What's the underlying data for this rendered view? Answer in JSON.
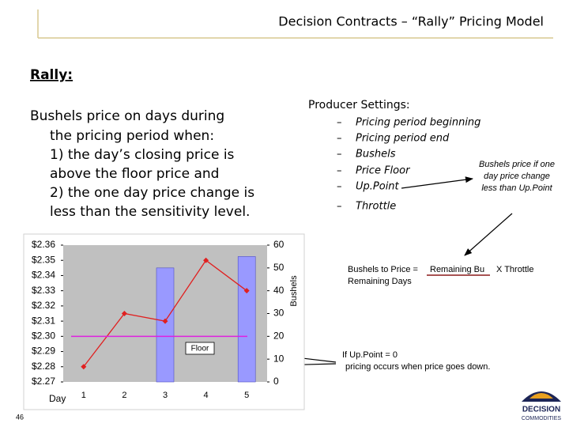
{
  "header": {
    "title": "Decision Contracts – “Rally” Pricing Model"
  },
  "section_title": "Rally:",
  "description": [
    "Bushels price on days  during",
    "the pricing period when:",
    "1) the day’s closing price is",
    "above the floor price and",
    "2) the one day price change is",
    "less than the sensitivity level."
  ],
  "producer_settings": {
    "title": "Producer Settings:",
    "bullet": "–",
    "items": [
      "Pricing period beginning",
      "Pricing period end",
      "Bushels",
      "Price Floor",
      "Up.Point",
      "Throttle"
    ]
  },
  "notes": {
    "uppoint_rule": [
      "Bushels price if one",
      "day price change",
      "less than Up.Point"
    ],
    "throttle_formula": {
      "lhs": "Bushels to Price =",
      "numerator": "Remaining Bu",
      "operator": "X Throttle",
      "denominator": "Remaining Days"
    },
    "zero_uppoint": [
      "If Up.Point = 0",
      "pricing occurs when price goes down."
    ]
  },
  "page_number": "46",
  "logo": [
    "DECISION",
    "COMMODITIES"
  ],
  "chart_data": {
    "type": "combo",
    "x_label": "Day",
    "y2_label": "Bushels",
    "categories": [
      "1",
      "2",
      "3",
      "4",
      "5"
    ],
    "background": "#c0c0c0",
    "ylim": [
      2.27,
      2.36
    ],
    "yticks": [
      {
        "value": 2.27,
        "label": "$2.27"
      },
      {
        "value": 2.28,
        "label": "$2.28"
      },
      {
        "value": 2.29,
        "label": "$2.29"
      },
      {
        "value": 2.3,
        "label": "$2.30"
      },
      {
        "value": 2.31,
        "label": "$2.31"
      },
      {
        "value": 2.32,
        "label": "$2.32"
      },
      {
        "value": 2.33,
        "label": "$2.33"
      },
      {
        "value": 2.34,
        "label": "$2.34"
      },
      {
        "value": 2.35,
        "label": "$2.35"
      },
      {
        "value": 2.36,
        "label": "$2.36"
      }
    ],
    "y2lim": [
      0,
      60
    ],
    "y2ticks": [
      0,
      10,
      20,
      30,
      40,
      50,
      60
    ],
    "floor": {
      "label": "Floor",
      "value": 2.3,
      "color": "#e020e0"
    },
    "series": [
      {
        "type": "bar",
        "axis": "y2",
        "color": "#9999ff",
        "values": [
          0,
          0,
          50,
          0,
          55
        ]
      },
      {
        "type": "line",
        "color": "#e02020",
        "values": [
          2.28,
          2.315,
          2.31,
          2.35,
          2.33
        ]
      }
    ]
  }
}
